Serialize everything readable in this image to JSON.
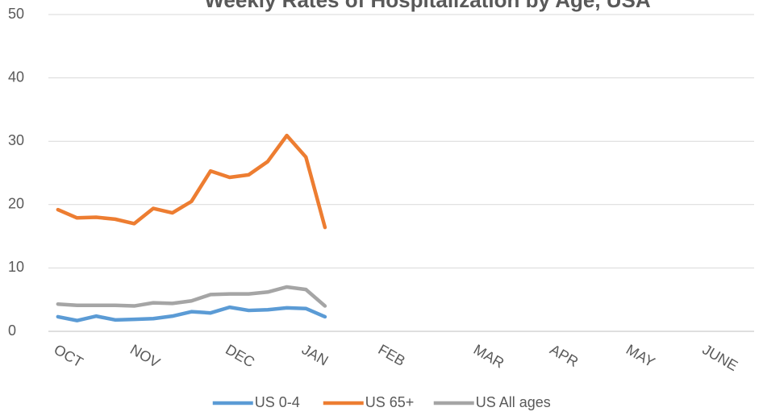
{
  "chart_data": {
    "type": "line",
    "title": "Weekly Rates of Hospitalization by Age, USA",
    "categories": [
      "OCT",
      null,
      null,
      null,
      "NOV",
      null,
      null,
      null,
      null,
      "DEC",
      null,
      null,
      null,
      "JAN",
      null,
      null,
      null,
      "FEB",
      null,
      null,
      null,
      null,
      "MAR",
      null,
      null,
      null,
      "APR",
      null,
      null,
      null,
      "MAY",
      null,
      null,
      null,
      "JUNE",
      null,
      null
    ],
    "series": [
      {
        "name": "US 0-4",
        "color": "#5b9bd5",
        "values": [
          2.3,
          1.7,
          2.4,
          1.8,
          1.9,
          2.0,
          2.4,
          3.1,
          2.9,
          3.8,
          3.3,
          3.4,
          3.7,
          3.6,
          2.3,
          null,
          null,
          null,
          null,
          null,
          null,
          null,
          null,
          null,
          null,
          null,
          null,
          null,
          null,
          null,
          null,
          null,
          null,
          null,
          null,
          null,
          null
        ]
      },
      {
        "name": "US 65+",
        "color": "#ed7d31",
        "values": [
          19.2,
          17.9,
          18.0,
          17.7,
          17.0,
          19.4,
          18.7,
          20.5,
          25.3,
          24.3,
          24.7,
          26.8,
          30.9,
          27.5,
          16.4,
          null,
          null,
          null,
          null,
          null,
          null,
          null,
          null,
          null,
          null,
          null,
          null,
          null,
          null,
          null,
          null,
          null,
          null,
          null,
          null,
          null,
          null
        ]
      },
      {
        "name": "US All ages",
        "color": "#a5a5a5",
        "values": [
          4.3,
          4.1,
          4.1,
          4.1,
          4.0,
          4.5,
          4.4,
          4.8,
          5.8,
          5.9,
          5.9,
          6.2,
          7.0,
          6.6,
          4.0,
          null,
          null,
          null,
          null,
          null,
          null,
          null,
          null,
          null,
          null,
          null,
          null,
          null,
          null,
          null,
          null,
          null,
          null,
          null,
          null,
          null,
          null
        ]
      }
    ],
    "ylim": [
      0,
      50
    ],
    "yticks": [
      0,
      10,
      20,
      30,
      40,
      50
    ],
    "grid": true,
    "legend": "bottom"
  }
}
